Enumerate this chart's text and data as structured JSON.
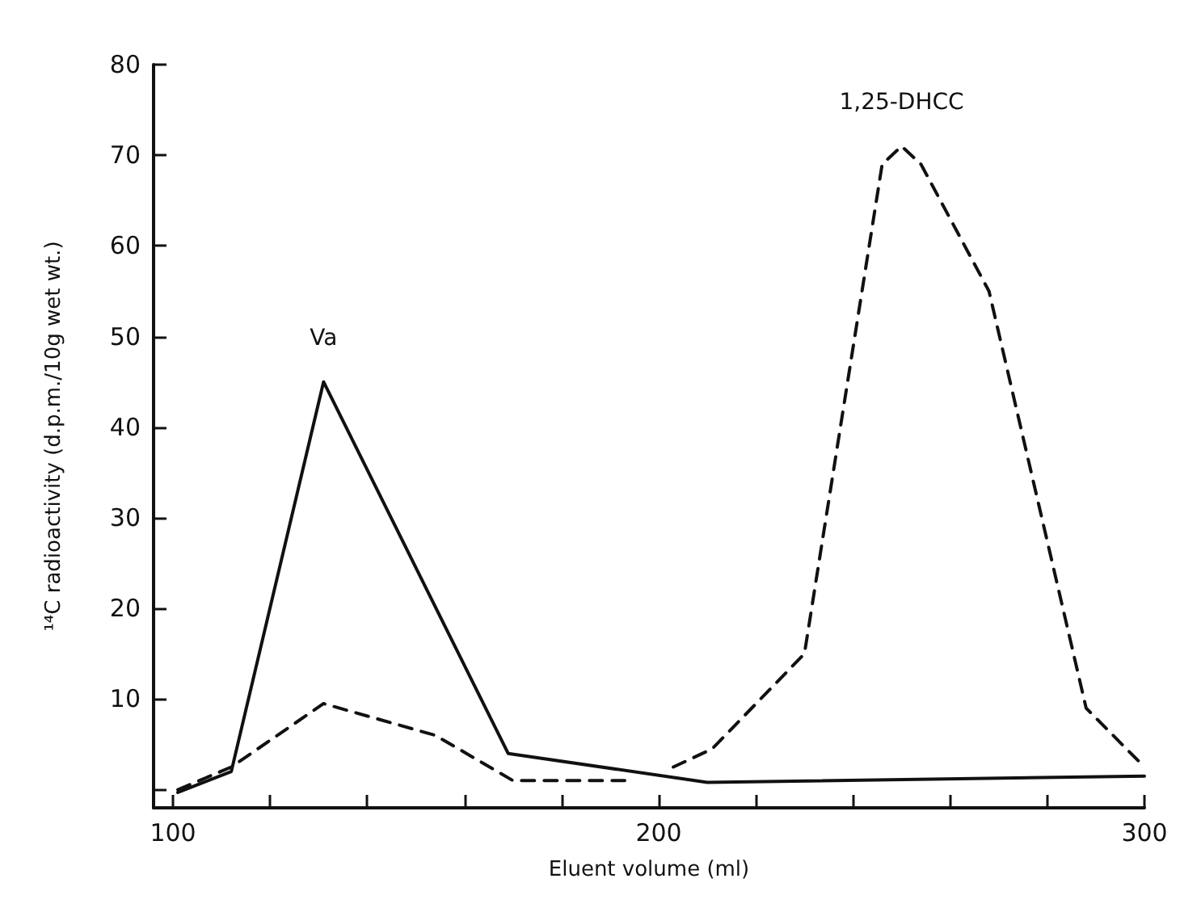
{
  "chart_data": {
    "type": "line",
    "xlabel": "Eluent volume (ml)",
    "ylabel": "¹⁴C radioactivity (d.p.m./10g wet wt.)",
    "xlim": [
      96,
      300
    ],
    "ylim": [
      -2,
      80
    ],
    "xticks": [
      100,
      {
        "value": 120,
        "label": null
      },
      {
        "value": 140,
        "label": null
      },
      {
        "value": 160,
        "label": null
      },
      {
        "value": 180,
        "label": null
      },
      200,
      {
        "value": 220,
        "label": null
      },
      {
        "value": 240,
        "label": null
      },
      {
        "value": 260,
        "label": null
      },
      {
        "value": 280,
        "label": null
      },
      300
    ],
    "yticks": [
      {
        "value": 0,
        "label": null
      },
      10,
      20,
      30,
      40,
      50,
      60,
      70,
      80
    ],
    "marker": "none",
    "series": [
      {
        "color": "#111111",
        "line_style": "solid",
        "x": [
          101,
          112,
          131,
          169,
          210,
          300
        ],
        "values": [
          -0.3,
          2,
          45,
          4,
          0.8,
          1.5
        ]
      },
      {
        "color": "#111111",
        "line_style": "dashed",
        "x": [
          101,
          112,
          131,
          154,
          170,
          193,
          198,
          203,
          211,
          230,
          246,
          250,
          254,
          268,
          288,
          300
        ],
        "values": [
          0,
          2.5,
          9.5,
          6,
          1,
          1,
          null,
          2.5,
          4.5,
          15,
          69,
          71,
          69,
          55,
          9,
          2.5
        ]
      }
    ],
    "annotations": [
      {
        "text": "Va",
        "x": 131,
        "y": 45
      },
      {
        "text": "1,25-DHCC",
        "x": 250,
        "y": 71
      }
    ]
  }
}
